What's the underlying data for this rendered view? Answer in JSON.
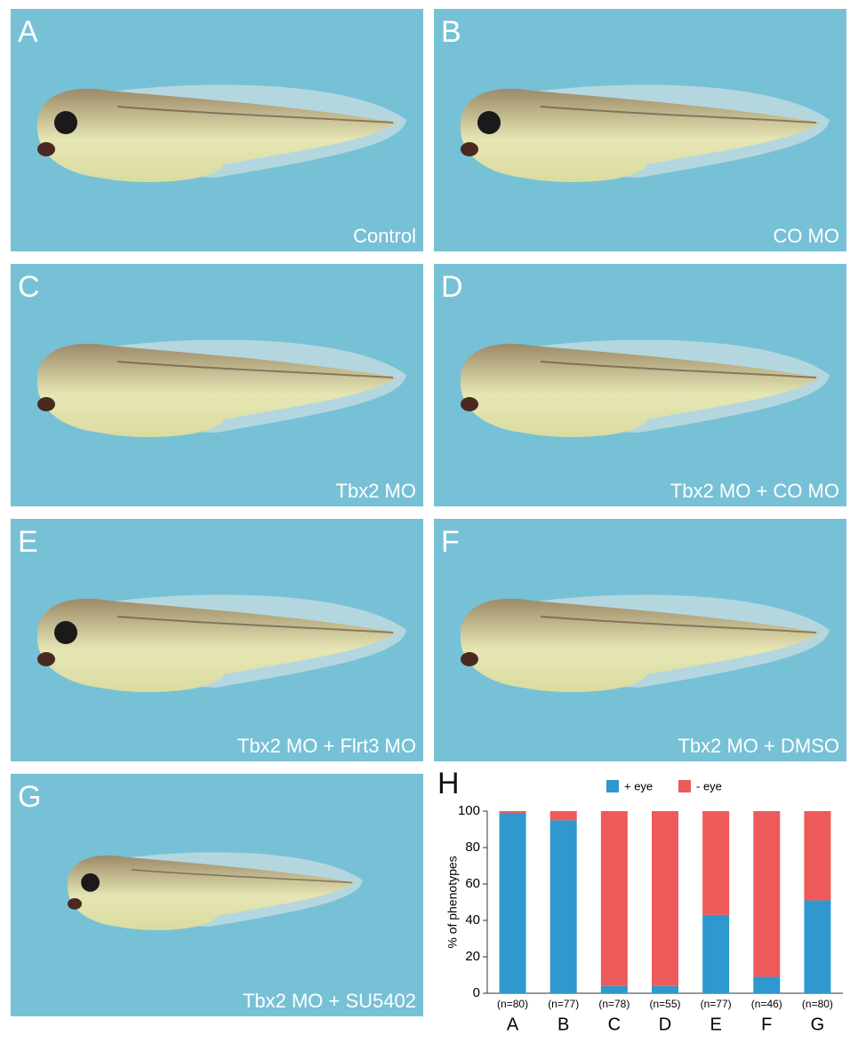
{
  "panels": [
    {
      "letter": "A",
      "caption": "Control"
    },
    {
      "letter": "B",
      "caption": "CO MO"
    },
    {
      "letter": "C",
      "caption": "Tbx2 MO"
    },
    {
      "letter": "D",
      "caption": "Tbx2 MO + CO MO"
    },
    {
      "letter": "E",
      "caption": "Tbx2 MO + Flrt3 MO"
    },
    {
      "letter": "F",
      "caption": "Tbx2 MO + DMSO"
    },
    {
      "letter": "G",
      "caption": "Tbx2 MO + SU5402"
    }
  ],
  "chart_data": {
    "type": "bar",
    "stacked": true,
    "panel_letter": "H",
    "ylabel": "% of phenotypes",
    "categories": [
      "A",
      "B",
      "C",
      "D",
      "E",
      "F",
      "G"
    ],
    "n_labels": [
      "(n=80)",
      "(n=77)",
      "(n=78)",
      "(n=55)",
      "(n=77)",
      "(n=46)",
      "(n=80)"
    ],
    "series": [
      {
        "name": "+ eye",
        "color": "#2e98cf",
        "values": [
          99,
          95,
          4,
          4,
          43,
          9,
          51
        ]
      },
      {
        "name": "- eye",
        "color": "#ee5a5a",
        "values": [
          1,
          5,
          96,
          96,
          57,
          91,
          49
        ]
      }
    ],
    "ylim": [
      0,
      100
    ],
    "yticks": [
      0,
      20,
      40,
      60,
      80,
      100
    ]
  }
}
